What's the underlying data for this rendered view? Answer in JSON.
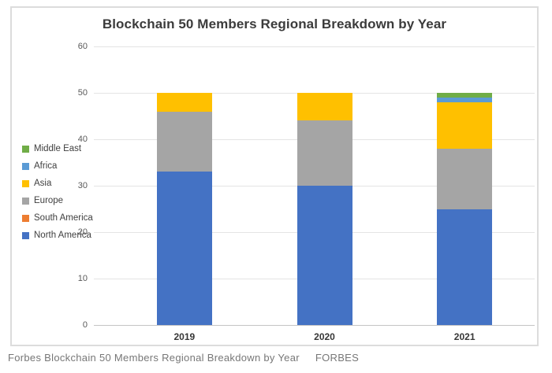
{
  "chart_data": {
    "type": "bar",
    "stacked": true,
    "title": "Blockchain 50 Members Regional Breakdown by Year",
    "categories": [
      "2019",
      "2020",
      "2021"
    ],
    "series": [
      {
        "name": "North America",
        "color": "#4472c4",
        "values": [
          33,
          30,
          25
        ]
      },
      {
        "name": "South America",
        "color": "#ed7d31",
        "values": [
          0,
          0,
          0
        ]
      },
      {
        "name": "Europe",
        "color": "#a5a5a5",
        "values": [
          13,
          14,
          13
        ]
      },
      {
        "name": "Asia",
        "color": "#ffc000",
        "values": [
          4,
          6,
          10
        ]
      },
      {
        "name": "Africa",
        "color": "#5b9bd5",
        "values": [
          0,
          0,
          1
        ]
      },
      {
        "name": "Middle East",
        "color": "#70ad47",
        "values": [
          0,
          0,
          1
        ]
      }
    ],
    "legend_order": [
      "Middle East",
      "Africa",
      "Asia",
      "Europe",
      "South America",
      "North America"
    ],
    "legend_position": "left",
    "xlabel": "",
    "ylabel": "",
    "ylim": [
      0,
      60
    ],
    "ytick_step": 10,
    "yticks": [
      0,
      10,
      20,
      30,
      40,
      50,
      60
    ],
    "grid": true
  },
  "caption": {
    "text": "Forbes Blockchain 50 Members Regional Breakdown by Year",
    "brand": "FORBES"
  }
}
